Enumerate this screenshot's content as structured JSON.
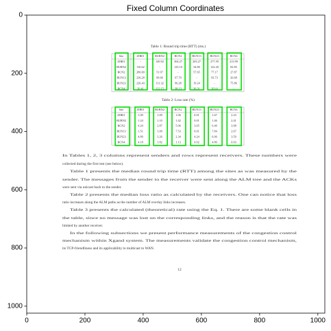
{
  "chart_data": {
    "type": "image",
    "title": "Fixed Column Coordinates",
    "xlim": [
      0,
      1024
    ],
    "ylim": [
      1024,
      0
    ],
    "xticks": [
      0,
      200,
      400,
      600,
      800,
      1000
    ],
    "yticks": [
      0,
      200,
      400,
      600,
      800,
      1000
    ],
    "box_color": "#00dd00",
    "boxes": [
      {
        "x": [
          304,
          348
        ],
        "y": [
          130,
          257
        ]
      },
      {
        "x": [
          367,
          414
        ],
        "y": [
          130,
          257
        ]
      },
      {
        "x": [
          433,
          481
        ],
        "y": [
          130,
          257
        ]
      },
      {
        "x": [
          497,
          544
        ],
        "y": [
          130,
          257
        ]
      },
      {
        "x": [
          561,
          608
        ],
        "y": [
          130,
          257
        ]
      },
      {
        "x": [
          622,
          671
        ],
        "y": [
          130,
          257
        ]
      },
      {
        "x": [
          688,
          737
        ],
        "y": [
          130,
          257
        ]
      },
      {
        "x": [
          304,
          353
        ],
        "y": [
          316,
          448
        ]
      },
      {
        "x": [
          372,
          421
        ],
        "y": [
          316,
          448
        ]
      },
      {
        "x": [
          436,
          483
        ],
        "y": [
          316,
          448
        ]
      },
      {
        "x": [
          499,
          546
        ],
        "y": [
          316,
          448
        ]
      },
      {
        "x": [
          563,
          610
        ],
        "y": [
          316,
          448
        ]
      },
      {
        "x": [
          624,
          671
        ],
        "y": [
          316,
          448
        ]
      },
      {
        "x": [
          688,
          737
        ],
        "y": [
          316,
          448
        ]
      }
    ],
    "document": {
      "tables": [
        {
          "caption": "Table 1: Round trip time (RTT) (ms.)",
          "rows": [
            [
              "Site",
              "ZIB01",
              "BURN2",
              "BCN2",
              "BUN13",
              "BUN23",
              "BCN4"
            ],
            [
              "ZIB01",
              "-",
              "149.92",
              "304.27",
              "203.27",
              "277.59",
              "213.99"
            ],
            [
              "BURN2",
              "116.62",
              "-",
              "125.10",
              "34.80",
              "122.20",
              "82.85"
            ],
            [
              "BCN2",
              "286.69",
              "51.97",
              "-",
              "57.65",
              "77.17",
              "27.87"
            ],
            [
              "BUN13",
              "236.20",
              "99.66",
              "67.70",
              "-",
              "93.73",
              "26.68"
            ],
            [
              "BUN23",
              "226.43",
              "111.32",
              "96.28",
              "19.24",
              "-",
              "75.86"
            ],
            [
              "BCN4",
              "26.41",
              "122.15",
              "38.13",
              "36.31",
              "203.6",
              "-"
            ]
          ]
        },
        {
          "caption": "Table 2: Loss rate (%)",
          "rows": [
            [
              "Site",
              "ZIB01",
              "BURN2",
              "BCN2",
              "BUN13",
              "BUN23",
              "BCN4"
            ],
            [
              "ZIB01",
              "1.09",
              "1.09",
              "1.06",
              "0.01",
              "1.67",
              "2.23"
            ],
            [
              "BURN2",
              "1.24",
              "1.10",
              "1.42",
              "0.01",
              "1.46",
              "2.41"
            ],
            [
              "BCN2",
              "4.20",
              "2.87",
              "5.06",
              "3.05",
              "6.40",
              "3.98"
            ],
            [
              "BUN13",
              "1.51",
              "1.09",
              "7.53",
              "0.01",
              "7.84",
              "2.67"
            ],
            [
              "BUN23",
              "4.89",
              "3.26",
              "2.34",
              "4.24",
              "6.06",
              "3.59"
            ],
            [
              "BCN4",
              "4.18",
              "1.82",
              "1.13",
              "0.02",
              "4.80",
              "0.03"
            ]
          ]
        }
      ],
      "lines": [
        "In Tables 1, 2, 3 columns represent senders and rows represent receivers. These numbers were",
        "collected during the first test (see below).",
        "Table 1 presents the median round trip time (RTT) among the sites as was measured by the",
        "sender. The messages from the sender to the receiver were sent along the ALM tree and the ACKs",
        "were sent via unicast back to the sender.",
        "Table 2 presents the median loss ratio as calculated by the receivers. One can notice that loss",
        "ratio increases along the ALM paths as the number of ALM overlay links increases.",
        "Table 3 presents the calculated (theoretical) rate using the Eq. 1. There are some blank cells in",
        "the table, since no message was lost on the corresponding links, and the reason is that the rate was",
        "limited by another receiver.",
        "In the following subsections we present performance measurements of the congestion control",
        "mechanism within Xgand system. The measurements validate the congestion control mechanism,",
        "its TCP-friendliness and its applicability to multicast to WAN."
      ],
      "page_number": "12"
    }
  }
}
